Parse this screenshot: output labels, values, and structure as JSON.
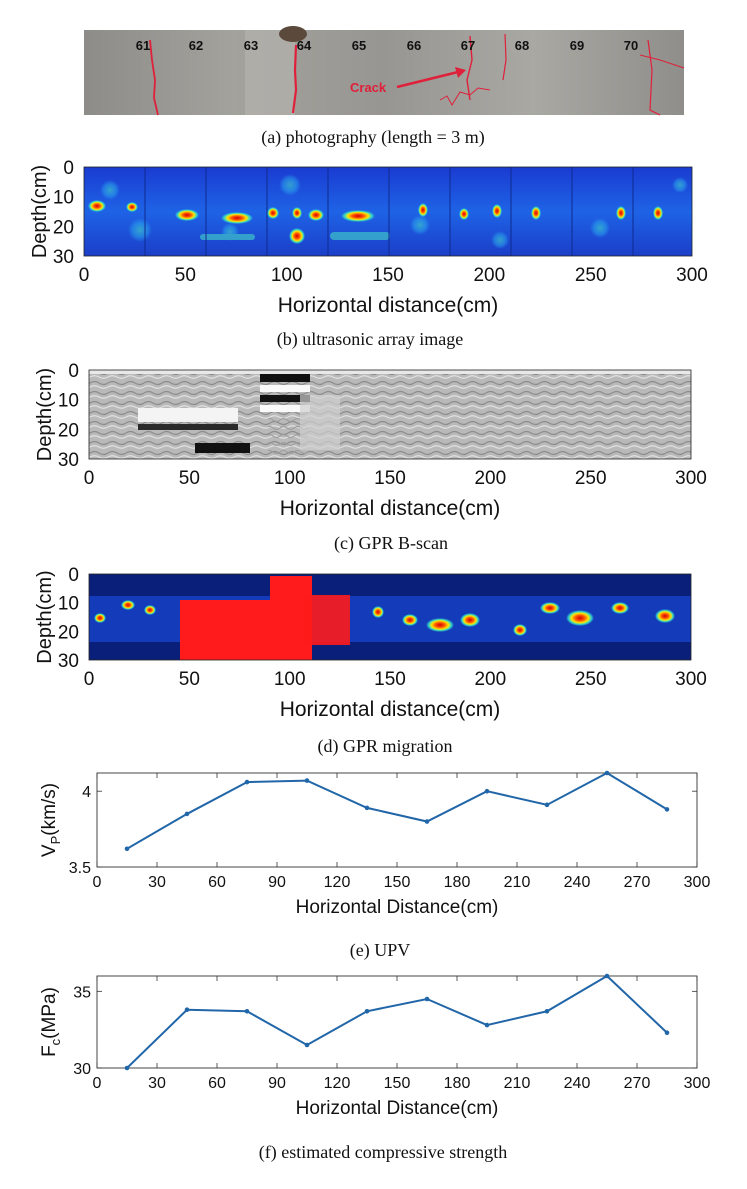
{
  "photo": {
    "caption": "(a) photography (length = 3 m)",
    "markers": [
      "61",
      "62",
      "63",
      "64",
      "65",
      "66",
      "67",
      "68",
      "69",
      "70"
    ],
    "crack_label": "Crack"
  },
  "ultrasonic": {
    "caption": "(b) ultrasonic array image",
    "ylabel": "Depth(cm)",
    "xlabel": "Horizontal distance(cm)",
    "yticks": [
      "0",
      "10",
      "20",
      "30"
    ],
    "xticks": [
      "0",
      "50",
      "100",
      "150",
      "200",
      "250",
      "300"
    ]
  },
  "gpr_bscan": {
    "caption": "(c) GPR B-scan",
    "ylabel": "Depth(cm)",
    "xlabel": "Horizontal distance(cm)",
    "yticks": [
      "0",
      "10",
      "20",
      "30"
    ],
    "xticks": [
      "0",
      "50",
      "100",
      "150",
      "200",
      "250",
      "300"
    ]
  },
  "gpr_migration": {
    "caption": "(d) GPR migration",
    "ylabel": "Depth(cm)",
    "xlabel": "Horizontal distance(cm)",
    "yticks": [
      "0",
      "10",
      "20",
      "30"
    ],
    "xticks": [
      "0",
      "50",
      "100",
      "150",
      "200",
      "250",
      "300"
    ]
  },
  "chart_data": [
    {
      "type": "line",
      "caption": "(e) UPV",
      "title": "",
      "xlabel": "Horizontal Distance(cm)",
      "ylabel": "V",
      "ylabel_sub": "P",
      "ylabel_unit": "(km/s)",
      "x": [
        15,
        45,
        75,
        105,
        135,
        165,
        195,
        225,
        255,
        285
      ],
      "values": [
        3.62,
        3.85,
        4.06,
        4.07,
        3.89,
        3.8,
        4.0,
        3.91,
        4.12,
        3.88
      ],
      "xlim": [
        0,
        300
      ],
      "ylim": [
        3.5,
        4.12
      ],
      "xticks": [
        0,
        30,
        60,
        90,
        120,
        150,
        180,
        210,
        240,
        270,
        300
      ],
      "yticks": [
        3.5,
        4
      ],
      "ytick_labels": [
        "3.5",
        "4"
      ],
      "color": "#2166a8"
    },
    {
      "type": "line",
      "caption": "(f) estimated compressive strength",
      "title": "",
      "xlabel": "Horizontal Distance(cm)",
      "ylabel": "F",
      "ylabel_sub": "c",
      "ylabel_unit": "(MPa)",
      "x": [
        15,
        45,
        75,
        105,
        135,
        165,
        195,
        225,
        255,
        285
      ],
      "values": [
        30.0,
        33.8,
        33.7,
        31.5,
        33.7,
        34.5,
        32.8,
        33.7,
        36.0,
        32.3
      ],
      "xlim": [
        0,
        300
      ],
      "ylim": [
        30,
        36
      ],
      "xticks": [
        0,
        30,
        60,
        90,
        120,
        150,
        180,
        210,
        240,
        270,
        300
      ],
      "yticks": [
        30,
        35
      ],
      "ytick_labels": [
        "30",
        "35"
      ],
      "color": "#2166a8"
    }
  ]
}
